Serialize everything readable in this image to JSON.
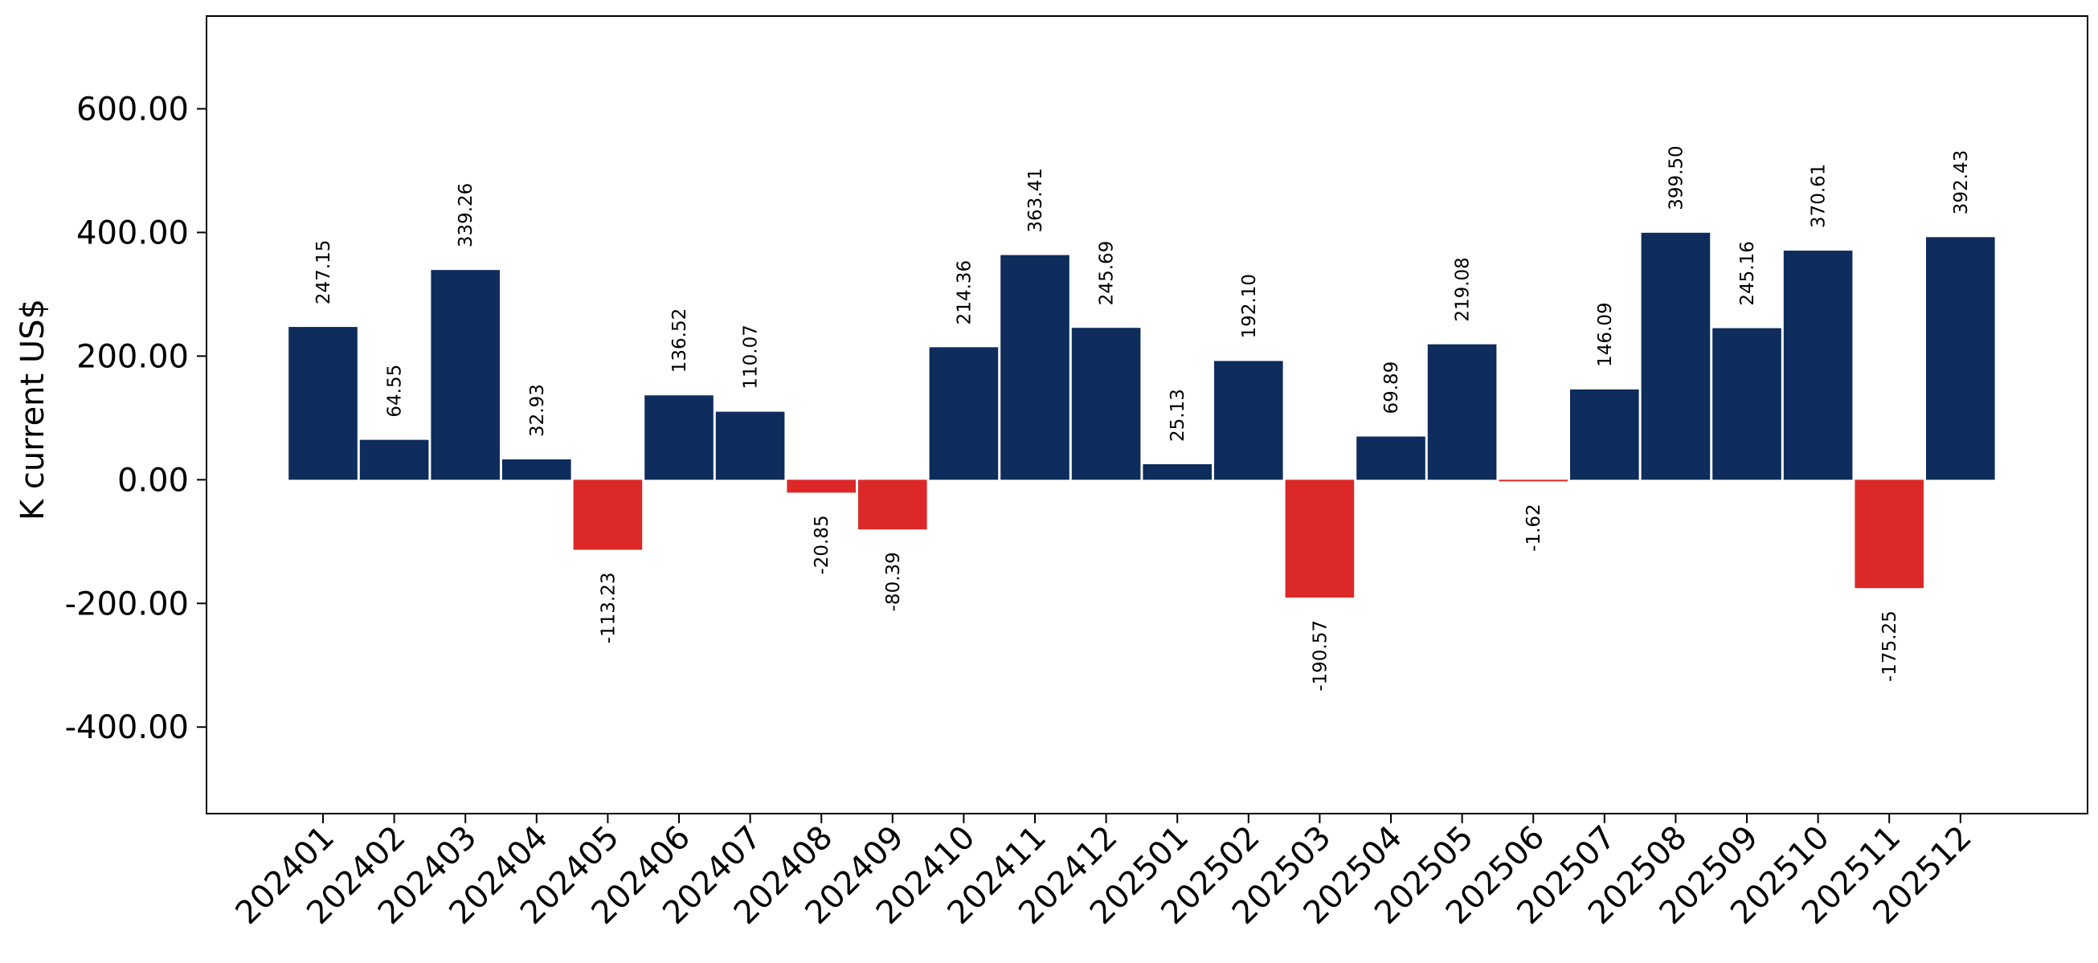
{
  "chart_data": {
    "type": "bar",
    "ylabel": "K current US$",
    "ylim": [
      -540,
      750
    ],
    "yticks": [
      600,
      400,
      200,
      0,
      -200,
      -400
    ],
    "ytick_labels": [
      "600.00",
      "400.00",
      "200.00",
      "0.00",
      "-200.00",
      "-400.00"
    ],
    "categories": [
      "202401",
      "202402",
      "202403",
      "202404",
      "202405",
      "202406",
      "202407",
      "202408",
      "202409",
      "202410",
      "202411",
      "202412",
      "202501",
      "202502",
      "202503",
      "202504",
      "202505",
      "202506",
      "202507",
      "202508",
      "202509",
      "202510",
      "202511",
      "202512"
    ],
    "values": [
      247.15,
      64.55,
      339.26,
      32.93,
      -113.23,
      136.52,
      110.07,
      -20.85,
      -80.39,
      214.36,
      363.41,
      245.69,
      25.13,
      192.1,
      -190.57,
      69.89,
      219.08,
      -1.62,
      146.09,
      399.5,
      245.16,
      370.61,
      -175.25,
      392.43
    ],
    "value_labels": [
      "247.15",
      "64.55",
      "339.26",
      "32.93",
      "-113.23",
      "136.52",
      "110.07",
      "-20.85",
      "-80.39",
      "214.36",
      "363.41",
      "245.69",
      "25.13",
      "192.10",
      "-190.57",
      "69.89",
      "219.08",
      "-1.62",
      "146.09",
      "399.50",
      "245.16",
      "370.61",
      "-175.25",
      "392.43"
    ],
    "colors": {
      "positive": "#0e2c5c",
      "negative": "#dc2828"
    },
    "grid": false,
    "legend": "none"
  }
}
